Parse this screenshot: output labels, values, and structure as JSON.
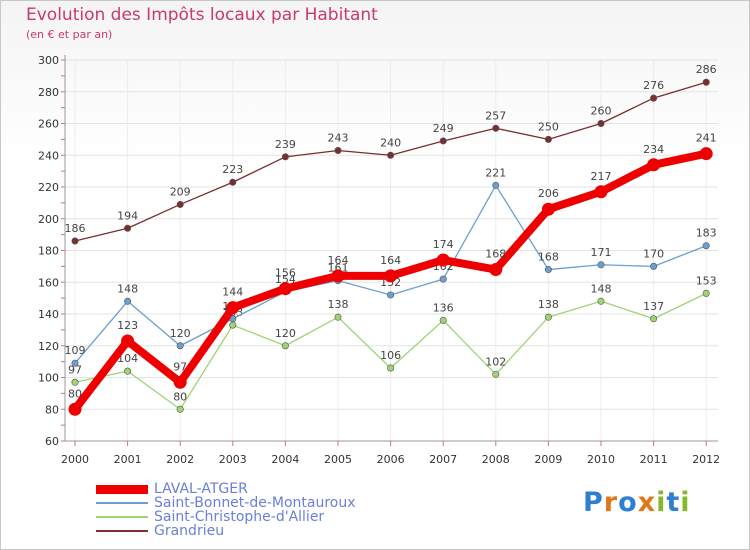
{
  "title": "Evolution des Impôts locaux par Habitant",
  "subtitle": "(en € et par an)",
  "logo": {
    "text": "Proxiti",
    "letters": [
      "P",
      "r",
      "o",
      "x",
      "i",
      "t",
      "i"
    ],
    "colors": [
      "#2e7fd1",
      "#e0781a",
      "#2e7fd1",
      "#e0781a",
      "#86b82b",
      "#2e7fd1",
      "#86b82b"
    ]
  },
  "chart_data": {
    "type": "line",
    "x": [
      "2000",
      "2001",
      "2002",
      "2003",
      "2004",
      "2005",
      "2006",
      "2007",
      "2008",
      "2009",
      "2010",
      "2011",
      "2012"
    ],
    "ylim": [
      60,
      300
    ],
    "yticks": [
      "60",
      "80",
      "100",
      "120",
      "140",
      "160",
      "180",
      "200",
      "220",
      "240",
      "260",
      "280",
      "300"
    ],
    "grid": true,
    "legend_position": "bottom-left",
    "series": [
      {
        "name": "Grandrieu",
        "color": "#7a2e2e",
        "values": [
          186,
          194,
          209,
          223,
          239,
          243,
          240,
          249,
          257,
          250,
          260,
          276,
          286
        ],
        "bold": false
      },
      {
        "name": "Saint-Christophe-d'Allier",
        "color": "#9fd474",
        "values": [
          97,
          104,
          80,
          133,
          120,
          138,
          106,
          136,
          102,
          138,
          148,
          137,
          153
        ],
        "bold": false
      },
      {
        "name": "Saint-Bonnet-de-Montauroux",
        "color": "#6a9fd0",
        "values": [
          109,
          148,
          120,
          137,
          154,
          161,
          152,
          162,
          221,
          168,
          171,
          170,
          183
        ],
        "bold": false
      },
      {
        "name": "LAVAL-ATGER",
        "color": "#ee0000",
        "values": [
          80,
          123,
          97,
          144,
          156,
          164,
          164,
          174,
          168,
          206,
          217,
          234,
          241
        ],
        "bold": true
      }
    ],
    "value_labels": {
      "Grandrieu": [
        "186",
        "194",
        "209",
        "223",
        "239",
        "243",
        "240",
        "249",
        "257",
        "250",
        "260",
        "276",
        "286"
      ],
      "Saint-Christophe-d'Allier": [
        "97",
        "104",
        "80",
        "133",
        "120",
        "138",
        "106",
        "136",
        "102",
        "138",
        "148",
        "137",
        "153"
      ],
      "Saint-Bonnet-de-Montauroux": [
        "109",
        "148",
        "120",
        "137",
        "154",
        "161",
        "152",
        "162",
        "221",
        "168",
        "171",
        "170",
        "183"
      ],
      "LAVAL-ATGER": [
        "80",
        "123",
        "97",
        "144",
        "156",
        "164",
        "164",
        "174",
        "168",
        "206",
        "217",
        "234",
        "241"
      ]
    }
  },
  "legend": [
    {
      "label": "LAVAL-ATGER",
      "color": "#ee0000",
      "bold": true
    },
    {
      "label": "Saint-Bonnet-de-Montauroux",
      "color": "#6a9fd0",
      "bold": false
    },
    {
      "label": "Saint-Christophe-d'Allier",
      "color": "#9fd474",
      "bold": false
    },
    {
      "label": "Grandrieu",
      "color": "#7a2e2e",
      "bold": false
    }
  ]
}
